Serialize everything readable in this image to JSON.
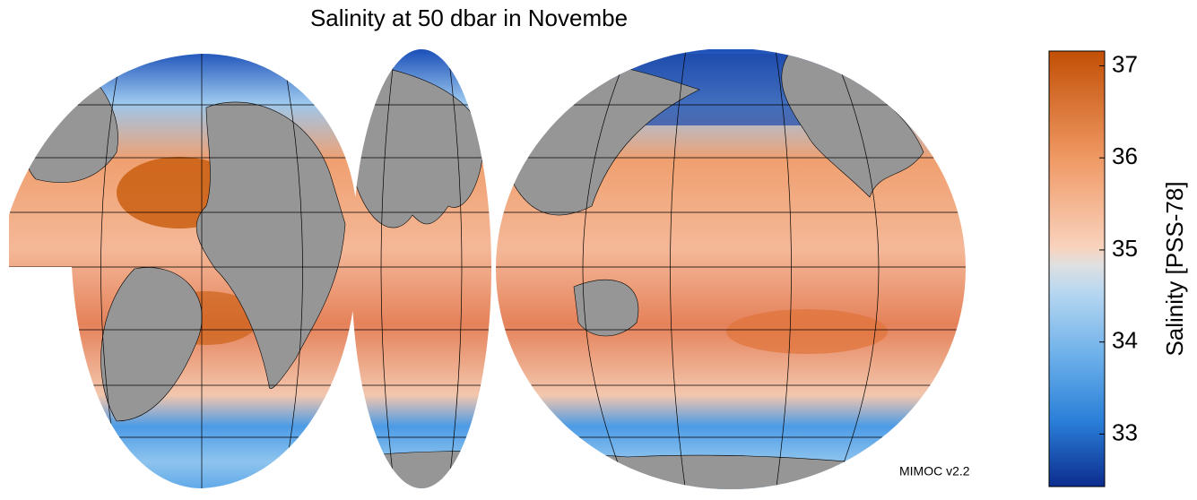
{
  "title": "Salinity at 50 dbar in Novembe",
  "credit": "MIMOC v2.2",
  "colorbar": {
    "label": "Salinity [PSS-78]",
    "lim": [
      32.43,
      37.16
    ],
    "ticks": [
      33,
      34,
      35,
      36,
      37
    ]
  }
}
